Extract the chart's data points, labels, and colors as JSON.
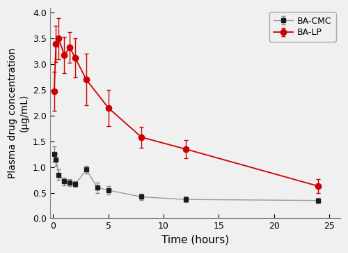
{
  "bacmc_x": [
    0.083,
    0.25,
    0.5,
    1.0,
    1.5,
    2.0,
    3.0,
    4.0,
    5.0,
    8.0,
    12.0,
    24.0
  ],
  "bacmc_y": [
    1.25,
    1.15,
    0.85,
    0.72,
    0.7,
    0.67,
    0.95,
    0.6,
    0.55,
    0.42,
    0.37,
    0.35
  ],
  "bacmc_err": [
    0.15,
    0.12,
    0.1,
    0.07,
    0.07,
    0.06,
    0.08,
    0.1,
    0.08,
    0.06,
    0.05,
    0.05
  ],
  "balp_x": [
    0.083,
    0.25,
    0.5,
    1.0,
    1.5,
    2.0,
    3.0,
    5.0,
    8.0,
    12.0,
    24.0
  ],
  "balp_y": [
    2.48,
    3.4,
    3.5,
    3.18,
    3.33,
    3.12,
    2.7,
    2.15,
    1.58,
    1.35,
    0.63
  ],
  "balp_err": [
    0.38,
    0.35,
    0.4,
    0.35,
    0.3,
    0.38,
    0.5,
    0.35,
    0.2,
    0.18,
    0.13
  ],
  "bacmc_line_color": "#999999",
  "bacmc_marker_color": "#1a1a1a",
  "bacmc_err_color": "#888888",
  "balp_line_color": "#cc0000",
  "balp_marker_color": "#cc0000",
  "balp_err_color": "#cc0000",
  "xlabel": "Time (hours)",
  "ylabel": "Plasma drug concentration\n(μg/mL)",
  "ylim": [
    0.0,
    4.1
  ],
  "xlim": [
    -0.3,
    26
  ],
  "xticks": [
    0,
    5,
    10,
    15,
    20,
    25
  ],
  "yticks": [
    0.0,
    0.5,
    1.0,
    1.5,
    2.0,
    2.5,
    3.0,
    3.5,
    4.0
  ],
  "legend_labels": [
    "BA-CMC",
    "BA-LP"
  ],
  "legend_loc": "upper right",
  "figsize": [
    5.0,
    3.63
  ],
  "dpi": 100,
  "bg_color": "#f0f0f0"
}
